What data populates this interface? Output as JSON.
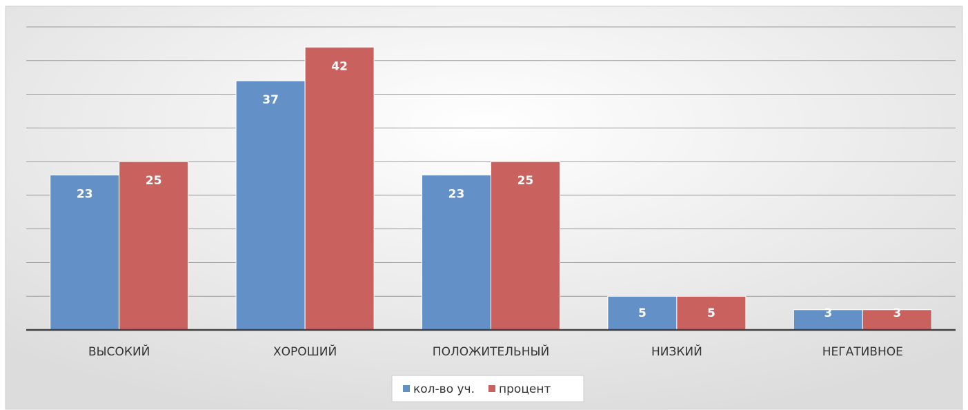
{
  "chart_data": {
    "type": "bar",
    "categories": [
      "ВЫСОКИЙ",
      "ХОРОШИЙ",
      "ПОЛОЖИТЕЛЬНЫЙ",
      "НИЗКИЙ",
      "НЕГАТИВНОЕ"
    ],
    "series": [
      {
        "name": "кол-во уч.",
        "color": "#6391c7",
        "values": [
          23,
          37,
          23,
          5,
          3
        ]
      },
      {
        "name": "процент",
        "color": "#c9615f",
        "values": [
          25,
          42,
          25,
          5,
          3
        ]
      }
    ],
    "ylim": [
      0,
      45
    ],
    "yticks": [
      0,
      5,
      10,
      15,
      20,
      25,
      30,
      35,
      40,
      45
    ],
    "grid": true,
    "legend": "bottom"
  }
}
